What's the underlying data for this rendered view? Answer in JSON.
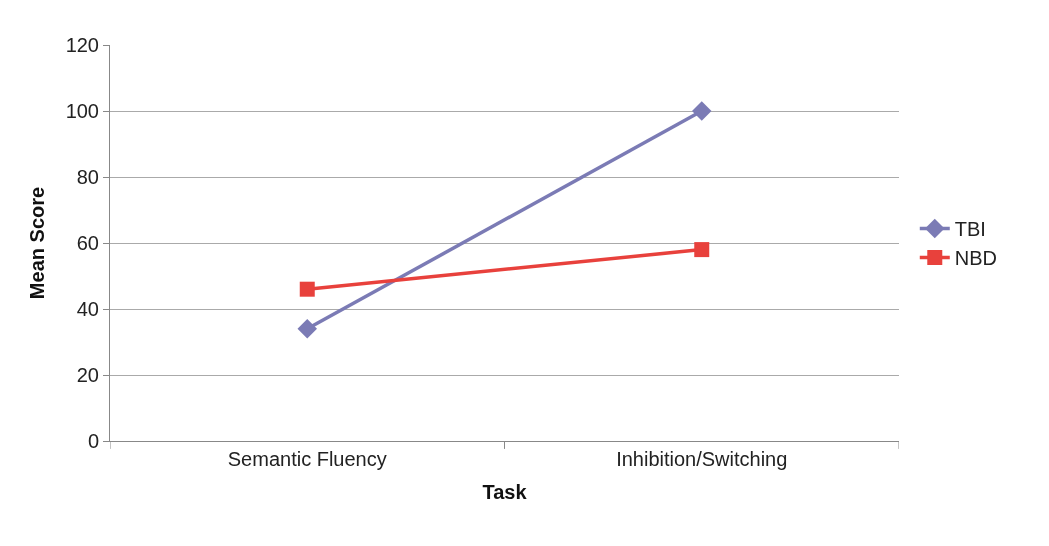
{
  "chart_data": {
    "type": "line",
    "xlabel": "Task",
    "ylabel": "Mean Score",
    "categories": [
      "Semantic Fluency",
      "Inhibition/Switching"
    ],
    "series": [
      {
        "name": "TBI",
        "color": "#7b7bb5",
        "marker": "diamond",
        "values": [
          34,
          100
        ]
      },
      {
        "name": "NBD",
        "color": "#e8413c",
        "marker": "square",
        "values": [
          46,
          58
        ]
      }
    ],
    "ylim": [
      0,
      120
    ],
    "yticks": [
      0,
      20,
      40,
      60,
      80,
      100,
      120
    ],
    "grid": "y",
    "legend": "right",
    "line_style": "solid"
  }
}
